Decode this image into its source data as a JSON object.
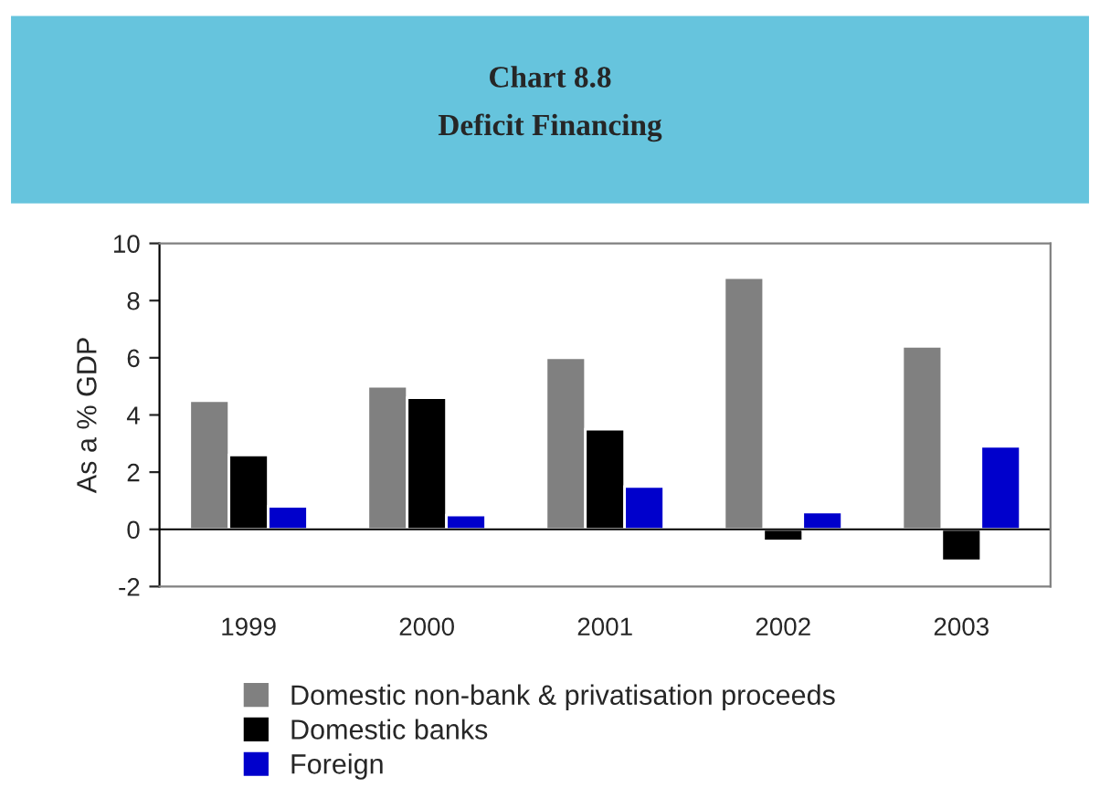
{
  "chart_data": {
    "type": "bar",
    "title": "Chart 8.8",
    "subtitle": "Deficit Financing",
    "ylabel": "As a % GDP",
    "categories": [
      "1999",
      "2000",
      "2001",
      "2002",
      "2003"
    ],
    "series": [
      {
        "name": "Domestic non-bank & privatisation proceeds",
        "color": "#808080",
        "values": [
          4.5,
          5.0,
          6.0,
          8.8,
          6.4
        ]
      },
      {
        "name": "Domestic banks",
        "color": "#000000",
        "values": [
          2.6,
          4.6,
          3.5,
          -0.4,
          -1.1
        ]
      },
      {
        "name": "Foreign",
        "color": "#0000cc",
        "values": [
          0.8,
          0.5,
          1.5,
          0.6,
          2.9
        ]
      }
    ],
    "ylim": [
      -2,
      10
    ],
    "yticks": [
      -2,
      0,
      2,
      4,
      6,
      8,
      10
    ],
    "legend": "bottom"
  }
}
